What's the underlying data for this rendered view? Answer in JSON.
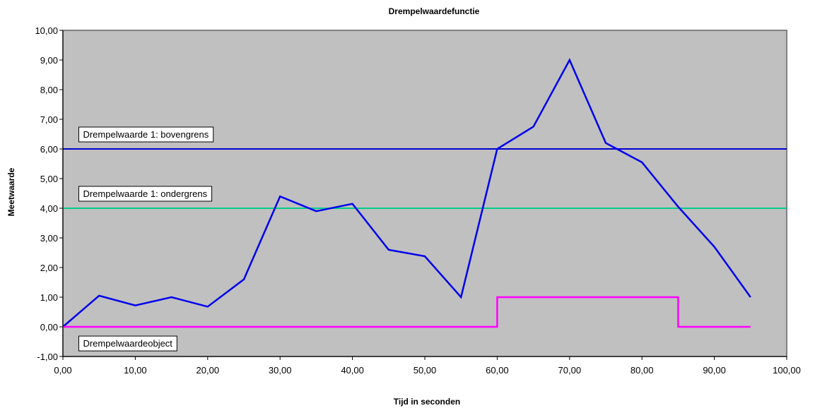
{
  "chart_data": {
    "type": "line",
    "title": "Drempelwaardefunctie",
    "xlabel": "Tijd in seconden",
    "ylabel": "Meetwaarde",
    "xlim": [
      0,
      100
    ],
    "ylim": [
      -1,
      10
    ],
    "x_ticks": [
      "0,00",
      "10,00",
      "20,00",
      "30,00",
      "40,00",
      "50,00",
      "60,00",
      "70,00",
      "80,00",
      "90,00",
      "100,00"
    ],
    "y_ticks": [
      "-1,00",
      "0,00",
      "1,00",
      "2,00",
      "3,00",
      "4,00",
      "5,00",
      "6,00",
      "7,00",
      "8,00",
      "9,00",
      "10,00"
    ],
    "grid": false,
    "plot_background": "#c0c0c0",
    "series": [
      {
        "color": "#0000ee",
        "x": [
          0,
          5,
          10,
          15,
          20,
          25,
          30,
          35,
          40,
          45,
          50,
          55,
          60,
          65,
          70,
          75,
          80,
          85,
          90,
          95
        ],
        "y": [
          0,
          1.05,
          0.72,
          1.0,
          0.68,
          1.6,
          4.4,
          3.9,
          4.15,
          2.6,
          2.38,
          1.0,
          6.0,
          6.75,
          9.0,
          6.2,
          5.55,
          4.05,
          2.7,
          1.0
        ]
      },
      {
        "color": "#ff00ff",
        "step": true,
        "x": [
          0,
          60,
          60,
          85,
          85,
          95
        ],
        "y": [
          0,
          0,
          1,
          1,
          0,
          0
        ]
      }
    ],
    "reference_lines": [
      {
        "y": 6,
        "color": "#0000cc"
      },
      {
        "y": 4,
        "color": "#00cc88"
      }
    ],
    "annotations": [
      {
        "text": "Drempelwaarde 1: bovengrens",
        "x": 2,
        "y": 6.5
      },
      {
        "text": "Drempelwaarde 1: ondergrens",
        "x": 2,
        "y": 4.5
      },
      {
        "text": "Drempelwaardeobject",
        "x": 2,
        "y": -0.55
      }
    ]
  }
}
